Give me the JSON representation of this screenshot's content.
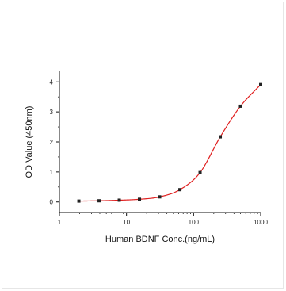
{
  "chart_data": {
    "type": "scatter",
    "title": "",
    "xlabel": "Human BDNF Conc.(ng/mL)",
    "ylabel": "OD Value (450nm)",
    "x_scale": "log",
    "xlim": [
      1,
      1000
    ],
    "ylim": [
      -0.35,
      4.35
    ],
    "x_ticks": [
      1,
      10,
      100,
      1000
    ],
    "x_tick_labels": [
      "1",
      "10",
      "100",
      "1000"
    ],
    "y_ticks": [
      0,
      1,
      2,
      3,
      4
    ],
    "y_tick_labels": [
      "0",
      "1",
      "2",
      "3",
      "4"
    ],
    "grid": false,
    "legend": "none",
    "series": [
      {
        "x": [
          1.95,
          3.9,
          7.8,
          15.6,
          31.25,
          62.5,
          125,
          250,
          500,
          1000
        ],
        "y": [
          0.03,
          0.04,
          0.06,
          0.09,
          0.17,
          0.41,
          0.98,
          2.17,
          3.19,
          3.91
        ],
        "marker": "square",
        "marker_color": "#222222",
        "line": "smooth fit",
        "line_color": "#e02020"
      }
    ]
  }
}
